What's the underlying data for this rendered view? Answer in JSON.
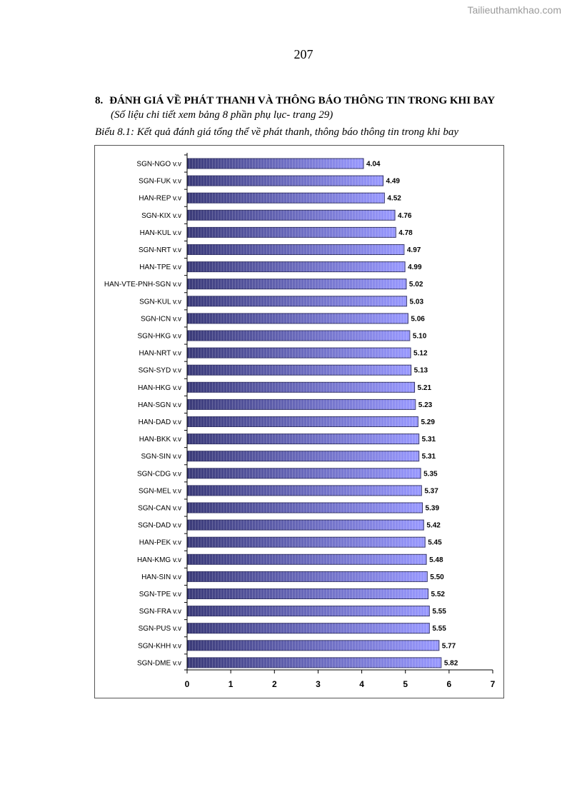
{
  "watermark": "Tailieuthamkhao.com",
  "page_number": "207",
  "section": {
    "number": "8.",
    "title": "ĐÁNH GIÁ VỀ PHÁT THANH VÀ THÔNG BÁO THÔNG TIN TRONG KHI BAY",
    "note": "(Số liệu chi tiết xem bảng 8 phần phụ lục- trang 29)"
  },
  "caption": "Biểu 8.1: Kết quả đánh giá tổng thể về phát thanh, thông báo thông tin trong khi bay",
  "colors": {
    "bar_fill": "#9999ff",
    "bar_edge": "#333366",
    "bar_shadow": "#3c3c78"
  },
  "chart_data": {
    "type": "bar",
    "orientation": "horizontal",
    "title": "",
    "xlabel": "",
    "ylabel": "",
    "xlim": [
      0,
      7
    ],
    "xticks": [
      "0",
      "1",
      "2",
      "3",
      "4",
      "5",
      "6",
      "7"
    ],
    "grid": false,
    "categories": [
      "SGN-NGO v.v",
      "SGN-FUK v.v",
      "HAN-REP v.v",
      "SGN-KIX v.v",
      "HAN-KUL v.v",
      "SGN-NRT v.v",
      "HAN-TPE v.v",
      "HAN-VTE-PNH-SGN v.v",
      "SGN-KUL v.v",
      "SGN-ICN v.v",
      "SGN-HKG v.v",
      "HAN-NRT v.v",
      "SGN-SYD v.v",
      "HAN-HKG v.v",
      "HAN-SGN v.v",
      "HAN-DAD v.v",
      "HAN-BKK v.v",
      "SGN-SIN v.v",
      "SGN-CDG v.v",
      "SGN-MEL v.v",
      "SGN-CAN v.v",
      "SGN-DAD v.v",
      "HAN-PEK v.v",
      "HAN-KMG v.v",
      "HAN-SIN v.v",
      "SGN-TPE v.v",
      "SGN-FRA v.v",
      "SGN-PUS v.v",
      "SGN-KHH v.v",
      "SGN-DME v.v"
    ],
    "values": [
      4.04,
      4.49,
      4.52,
      4.76,
      4.78,
      4.97,
      4.99,
      5.02,
      5.03,
      5.06,
      5.1,
      5.12,
      5.13,
      5.21,
      5.23,
      5.29,
      5.31,
      5.31,
      5.35,
      5.37,
      5.39,
      5.42,
      5.45,
      5.48,
      5.5,
      5.52,
      5.55,
      5.55,
      5.77,
      5.82
    ],
    "value_labels": [
      "4.04",
      "4.49",
      "4.52",
      "4.76",
      "4.78",
      "4.97",
      "4.99",
      "5.02",
      "5.03",
      "5.06",
      "5.10",
      "5.12",
      "5.13",
      "5.21",
      "5.23",
      "5.29",
      "5.31",
      "5.31",
      "5.35",
      "5.37",
      "5.39",
      "5.42",
      "5.45",
      "5.48",
      "5.50",
      "5.52",
      "5.55",
      "5.55",
      "5.77",
      "5.82"
    ]
  }
}
